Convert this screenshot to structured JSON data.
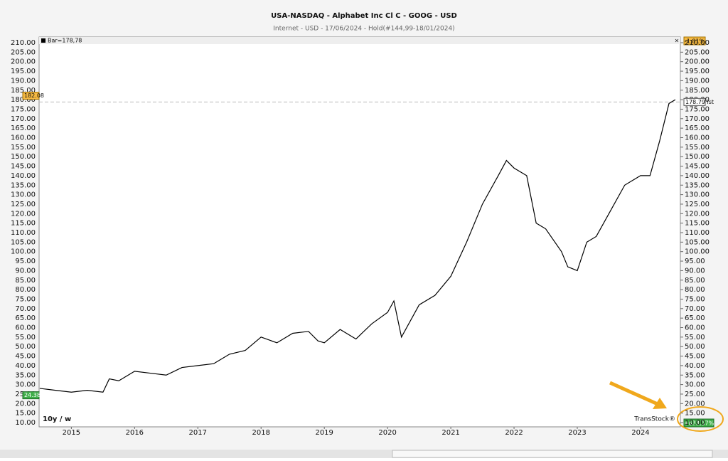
{
  "chart_data": {
    "type": "line",
    "title": "USA-NASDAQ - Alphabet Inc Cl C - GOOG - USD",
    "subtitle": "Internet - USD - 17/06/2024 - Hold(#144,99-18/01/2024)",
    "info_label": "Bar=178,78",
    "period_label": "10y / w",
    "brand": "TransStock®",
    "change_top": "-1,81%",
    "change_total": "+633,37%",
    "high_tag": 182.08,
    "start_tag": 24.38,
    "reference_line": {
      "value": 178.79,
      "label": "178.79 lst"
    },
    "xlim": [
      2014.49,
      2024.63
    ],
    "xticks": [
      2015,
      2016,
      2017,
      2018,
      2019,
      2020,
      2021,
      2022,
      2023,
      2024
    ],
    "ylim": [
      10,
      210
    ],
    "yticks": [
      {
        "value": 10,
        "label": "10.00"
      },
      {
        "value": 15,
        "label": "15.00"
      },
      {
        "value": 20,
        "label": "20.00"
      },
      {
        "value": 25,
        "label": "25.00"
      },
      {
        "value": 30,
        "label": "30.00"
      },
      {
        "value": 35,
        "label": "35.00"
      },
      {
        "value": 40,
        "label": "40.00"
      },
      {
        "value": 45,
        "label": "45.00"
      },
      {
        "value": 50,
        "label": "50.00"
      },
      {
        "value": 55,
        "label": "55.00"
      },
      {
        "value": 60,
        "label": "60.00"
      },
      {
        "value": 65,
        "label": "65.00"
      },
      {
        "value": 70,
        "label": "70.00"
      },
      {
        "value": 75,
        "label": "75.00"
      },
      {
        "value": 80,
        "label": "80.00"
      },
      {
        "value": 85,
        "label": "85.00"
      },
      {
        "value": 90,
        "label": "90.00"
      },
      {
        "value": 95,
        "label": "95.00"
      },
      {
        "value": 100,
        "label": "100.00"
      },
      {
        "value": 105,
        "label": "105.00"
      },
      {
        "value": 110,
        "label": "110.00"
      },
      {
        "value": 115,
        "label": "115.00"
      },
      {
        "value": 120,
        "label": "120.00"
      },
      {
        "value": 125,
        "label": "125.00"
      },
      {
        "value": 130,
        "label": "130.00"
      },
      {
        "value": 135,
        "label": "135.00"
      },
      {
        "value": 140,
        "label": "140.00"
      },
      {
        "value": 145,
        "label": "145.00"
      },
      {
        "value": 150,
        "label": "150.00"
      },
      {
        "value": 155,
        "label": "155.00"
      },
      {
        "value": 160,
        "label": "160.00"
      },
      {
        "value": 165,
        "label": "165.00"
      },
      {
        "value": 170,
        "label": "170.00"
      },
      {
        "value": 175,
        "label": "175.00"
      },
      {
        "value": 180,
        "label": "180.00"
      },
      {
        "value": 185,
        "label": "185.00"
      },
      {
        "value": 190,
        "label": "190.00"
      },
      {
        "value": 195,
        "label": "195.00"
      },
      {
        "value": 200,
        "label": "200.00"
      },
      {
        "value": 205,
        "label": "205.00"
      },
      {
        "value": 210,
        "label": "210.00"
      }
    ],
    "color": "#000000",
    "x": [
      2014.5,
      2014.75,
      2015.0,
      2015.25,
      2015.5,
      2015.6,
      2015.75,
      2016.0,
      2016.25,
      2016.5,
      2016.75,
      2017.0,
      2017.25,
      2017.5,
      2017.75,
      2018.0,
      2018.25,
      2018.5,
      2018.75,
      2018.9,
      2019.0,
      2019.25,
      2019.5,
      2019.75,
      2020.0,
      2020.1,
      2020.22,
      2020.5,
      2020.75,
      2021.0,
      2021.25,
      2021.5,
      2021.75,
      2021.88,
      2022.0,
      2022.2,
      2022.35,
      2022.5,
      2022.75,
      2022.85,
      2023.0,
      2023.15,
      2023.3,
      2023.5,
      2023.75,
      2024.0,
      2024.15,
      2024.3,
      2024.45,
      2024.55
    ],
    "values": [
      28,
      27,
      26,
      27,
      26,
      33,
      32,
      37,
      36,
      35,
      39,
      40,
      41,
      46,
      48,
      55,
      52,
      57,
      58,
      53,
      52,
      59,
      54,
      62,
      68,
      74,
      55,
      72,
      77,
      87,
      105,
      125,
      140,
      148,
      144,
      140,
      115,
      112,
      100,
      92,
      90,
      105,
      108,
      120,
      135,
      140,
      140,
      158,
      178,
      180
    ]
  }
}
